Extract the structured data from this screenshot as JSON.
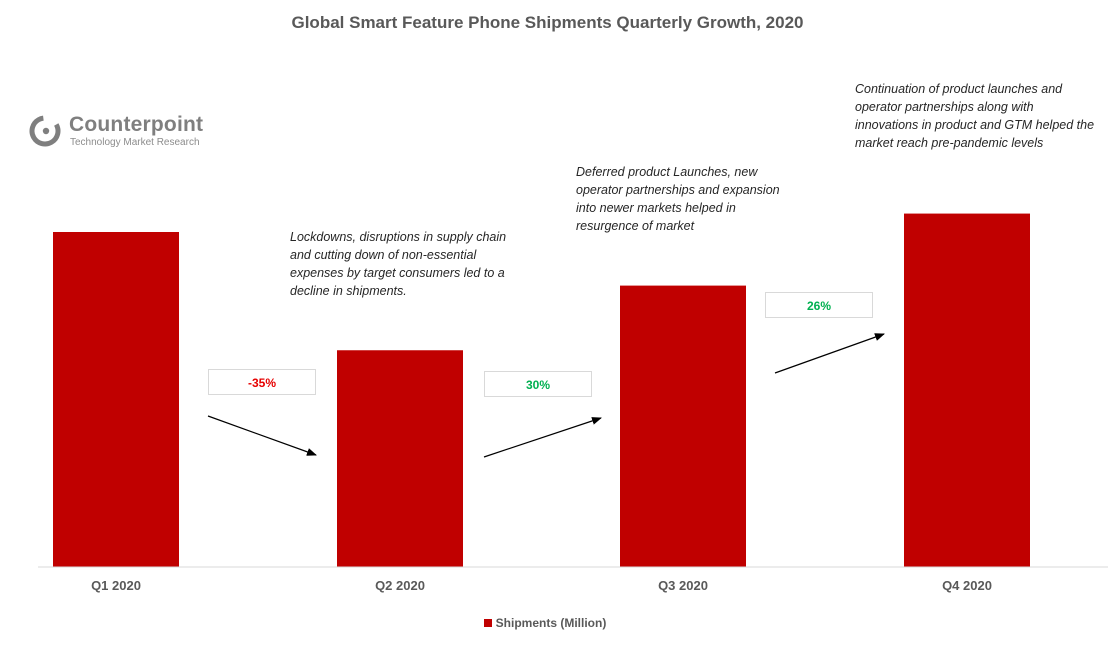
{
  "chart_data": {
    "type": "bar",
    "title": "Global Smart Feature Phone Shipments Quarterly Growth, 2020",
    "categories": [
      "Q1 2020",
      "Q2 2020",
      "Q3 2020",
      "Q4 2020"
    ],
    "series": [
      {
        "name": "Shipments (Million)",
        "values": [
          100,
          64.7,
          84,
          105.5
        ],
        "color": "#c00000"
      }
    ],
    "ylim": [
      0,
      120
    ],
    "xlabel": "",
    "ylabel": "",
    "grid": false,
    "legend_position": "bottom",
    "growth": [
      {
        "label": "-35%",
        "color": "#e60000"
      },
      {
        "label": "30%",
        "color": "#00b050"
      },
      {
        "label": "26%",
        "color": "#00b050"
      }
    ],
    "annotations": [
      {
        "text": "Lockdowns, disruptions in supply chain and cutting down of non-essential expenses by target consumers led to a decline in shipments."
      },
      {
        "text": "Deferred product Launches, new operator partnerships and expansion into newer markets helped in resurgence of market"
      },
      {
        "text": "Continuation of product launches and operator partnerships along with innovations in product and GTM helped the market reach pre-pandemic levels"
      }
    ]
  },
  "logo": {
    "name": "Counterpoint",
    "tagline": "Technology Market Research"
  },
  "colors": {
    "bar": "#c00000",
    "axis": "#d9d9d9",
    "arrow": "#000000"
  }
}
